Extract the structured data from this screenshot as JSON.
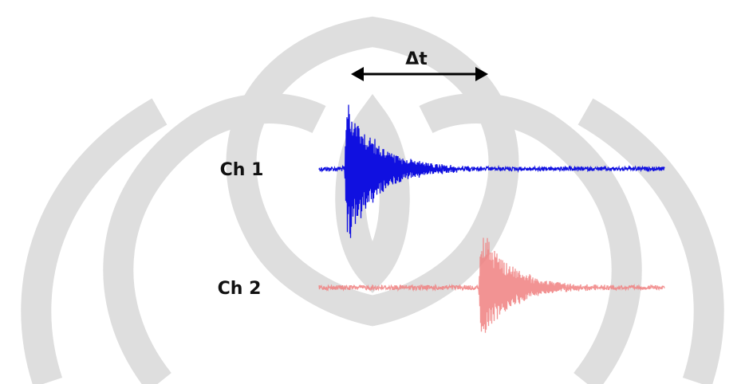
{
  "labels": {
    "delta": "Δt",
    "ch1": "Ch 1",
    "ch2": "Ch 2"
  }
}
